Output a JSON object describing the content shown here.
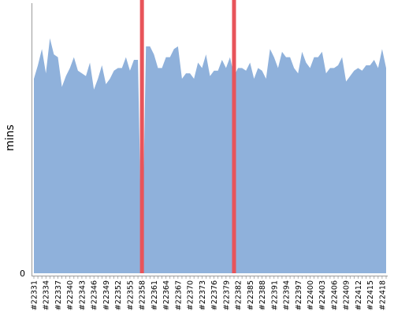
{
  "chart_data": {
    "type": "area",
    "ylabel": "mins",
    "y_tick_labels": [
      "0"
    ],
    "ylim": [
      0,
      100
    ],
    "x_start": 22331,
    "x_end": 22419,
    "x_label_prefix": "#",
    "x_label_every": 3,
    "values": [
      72,
      77,
      83,
      74,
      87,
      81,
      80,
      69,
      73,
      76,
      80,
      75,
      74,
      73,
      78,
      68,
      72,
      77,
      70,
      72,
      75,
      76,
      76,
      80,
      75,
      79,
      79,
      0,
      84,
      84,
      81,
      76,
      76,
      80,
      80,
      83,
      84,
      72,
      74,
      74,
      72,
      78,
      76,
      81,
      73,
      75,
      75,
      79,
      76,
      80,
      73,
      76,
      76,
      75,
      78,
      72,
      76,
      75,
      72,
      83,
      80,
      76,
      82,
      80,
      80,
      76,
      74,
      82,
      78,
      76,
      80,
      80,
      82,
      74,
      76,
      76,
      77,
      80,
      71,
      73,
      75,
      76,
      75,
      77,
      77,
      79,
      76,
      83,
      76
    ],
    "series_color": "#8fb1db",
    "markers": [
      {
        "x": 22358,
        "color": "#e8545a"
      },
      {
        "x": 22381,
        "color": "#e8545a"
      }
    ]
  }
}
